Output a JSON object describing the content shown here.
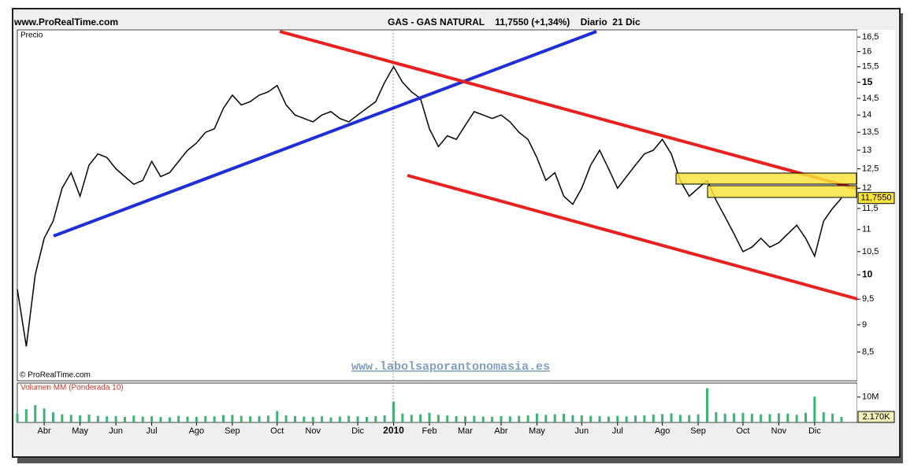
{
  "header": {
    "site": "www.ProRealTime.com",
    "title": "GAS - GAS NATURAL    11,7550 (+1,34%)    Diario  21 Dic"
  },
  "watermark": "www.labolsaporantonomasia.es",
  "copyright": "© ProRealTime.com",
  "chart_data": [
    {
      "type": "line",
      "label": "Precio",
      "log": true,
      "color": "#000000",
      "ylim": [
        8.0,
        16.75
      ],
      "yticks": [
        {
          "value": 8.5,
          "label": "8,5"
        },
        9,
        {
          "value": 9.5,
          "label": "9,5"
        },
        10,
        {
          "value": 10.5,
          "label": "10,5"
        },
        11,
        {
          "value": 11.5,
          "label": "11,5"
        },
        12,
        {
          "value": 12.5,
          "label": "12,5"
        },
        13,
        {
          "value": 13.5,
          "label": "13,5"
        },
        14,
        {
          "value": 14.5,
          "label": "14,5"
        },
        15,
        {
          "value": 15.5,
          "label": "15,5"
        },
        16,
        {
          "value": 16.5,
          "label": "16,5"
        }
      ],
      "categories": [
        null,
        null,
        null,
        "Abr",
        null,
        null,
        null,
        "May",
        null,
        null,
        null,
        "Jun",
        null,
        null,
        null,
        "Jul",
        null,
        null,
        null,
        null,
        "Ago",
        null,
        null,
        null,
        "Sep",
        null,
        null,
        null,
        null,
        "Oct",
        null,
        null,
        null,
        "Nov",
        null,
        null,
        null,
        null,
        "Dic",
        null,
        null,
        null,
        "2010",
        null,
        null,
        null,
        "Feb",
        null,
        null,
        null,
        "Mar",
        null,
        null,
        null,
        "Abr",
        null,
        null,
        null,
        "May",
        null,
        null,
        null,
        null,
        "Jun",
        null,
        null,
        null,
        "Jul",
        null,
        null,
        null,
        null,
        "Ago",
        null,
        null,
        null,
        "Sep",
        null,
        null,
        null,
        null,
        "Oct",
        null,
        null,
        null,
        "Nov",
        null,
        null,
        null,
        "Dic",
        null,
        null,
        null
      ],
      "values": [
        9.7,
        8.6,
        10.0,
        10.8,
        11.2,
        12.0,
        12.4,
        11.8,
        12.6,
        12.9,
        12.8,
        12.5,
        12.3,
        12.1,
        12.2,
        12.7,
        12.3,
        12.4,
        12.7,
        13.0,
        13.2,
        13.5,
        13.6,
        14.2,
        14.6,
        14.3,
        14.4,
        14.6,
        14.7,
        14.9,
        14.3,
        14.0,
        13.9,
        13.8,
        14.0,
        14.1,
        13.9,
        13.8,
        14.0,
        14.2,
        14.4,
        15.0,
        15.5,
        15.0,
        14.7,
        14.5,
        13.6,
        13.1,
        13.4,
        13.3,
        13.7,
        14.1,
        14.0,
        13.9,
        14.0,
        13.8,
        13.5,
        13.3,
        12.8,
        12.2,
        12.4,
        11.8,
        11.6,
        12.0,
        12.6,
        13.0,
        12.5,
        12.0,
        12.3,
        12.6,
        12.9,
        13.0,
        13.3,
        12.9,
        12.2,
        11.8,
        12.0,
        12.2,
        11.7,
        11.3,
        10.9,
        10.5,
        10.6,
        10.8,
        10.6,
        10.7,
        10.9,
        11.1,
        10.8,
        10.4,
        11.2,
        11.5,
        11.755
      ],
      "value_labels": [
        null,
        null,
        null,
        null,
        null,
        null,
        null,
        null,
        null,
        null,
        null,
        null,
        null,
        null,
        null,
        null,
        null,
        null,
        null,
        null,
        null,
        null,
        null,
        null,
        null,
        null,
        null,
        null,
        null,
        null,
        null,
        null,
        null,
        null,
        null,
        null,
        null,
        null,
        null,
        null,
        null,
        null,
        null,
        null,
        null,
        null,
        null,
        null,
        null,
        null,
        null,
        null,
        null,
        null,
        null,
        null,
        null,
        null,
        null,
        null,
        null,
        null,
        null,
        null,
        null,
        null,
        null,
        null,
        null,
        null,
        null,
        null,
        null,
        null,
        null,
        null,
        null,
        null,
        null,
        null,
        null,
        null,
        null,
        null,
        null,
        null,
        null,
        null,
        null,
        null,
        null,
        null,
        "11,7550"
      ]
    },
    {
      "type": "bar",
      "label": "Volumen MM (Ponderada 10)",
      "color": "#3cb371",
      "ylim": [
        0,
        15500000
      ],
      "yticks": [
        {
          "value": 10000000,
          "label": "10M"
        }
      ],
      "values": [
        3500000,
        5200000,
        6800000,
        5500000,
        4000000,
        3200000,
        3000000,
        2800000,
        3100000,
        2600000,
        2400000,
        2500000,
        2200000,
        2700000,
        2300000,
        2400000,
        2100000,
        2000000,
        2600000,
        2300000,
        2200000,
        2500000,
        2400000,
        2900000,
        3000000,
        2600000,
        2400000,
        2500000,
        2700000,
        4500000,
        2800000,
        2500000,
        2300000,
        2200000,
        2400000,
        2000000,
        2300000,
        2600000,
        2400000,
        2200000,
        2500000,
        2800000,
        8200000,
        3500000,
        3000000,
        3200000,
        3800000,
        3000000,
        2700000,
        2500000,
        2400000,
        2600000,
        2300000,
        2200000,
        2500000,
        2400000,
        2600000,
        2800000,
        3500000,
        3000000,
        3200000,
        3400000,
        2900000,
        2800000,
        2600000,
        2500000,
        2300000,
        2600000,
        2400000,
        2700000,
        2800000,
        3100000,
        3300000,
        3600000,
        3000000,
        2900000,
        3200000,
        13500000,
        4000000,
        3500000,
        3600000,
        3800000,
        3400000,
        3200000,
        3300000,
        3600000,
        3500000,
        3000000,
        3800000,
        10200000,
        4000000,
        3500000,
        2170000
      ],
      "value_labels": [
        null,
        null,
        null,
        null,
        null,
        null,
        null,
        null,
        null,
        null,
        null,
        null,
        null,
        null,
        null,
        null,
        null,
        null,
        null,
        null,
        null,
        null,
        null,
        null,
        null,
        null,
        null,
        null,
        null,
        null,
        null,
        null,
        null,
        null,
        null,
        null,
        null,
        null,
        null,
        null,
        null,
        null,
        null,
        null,
        null,
        null,
        null,
        null,
        null,
        null,
        null,
        null,
        null,
        null,
        null,
        null,
        null,
        null,
        null,
        null,
        null,
        null,
        null,
        null,
        null,
        null,
        null,
        null,
        null,
        null,
        null,
        null,
        null,
        null,
        null,
        null,
        null,
        null,
        null,
        null,
        null,
        null,
        null,
        null,
        null,
        null,
        null,
        null,
        null,
        null,
        null,
        null,
        "2.170K"
      ]
    }
  ]
}
